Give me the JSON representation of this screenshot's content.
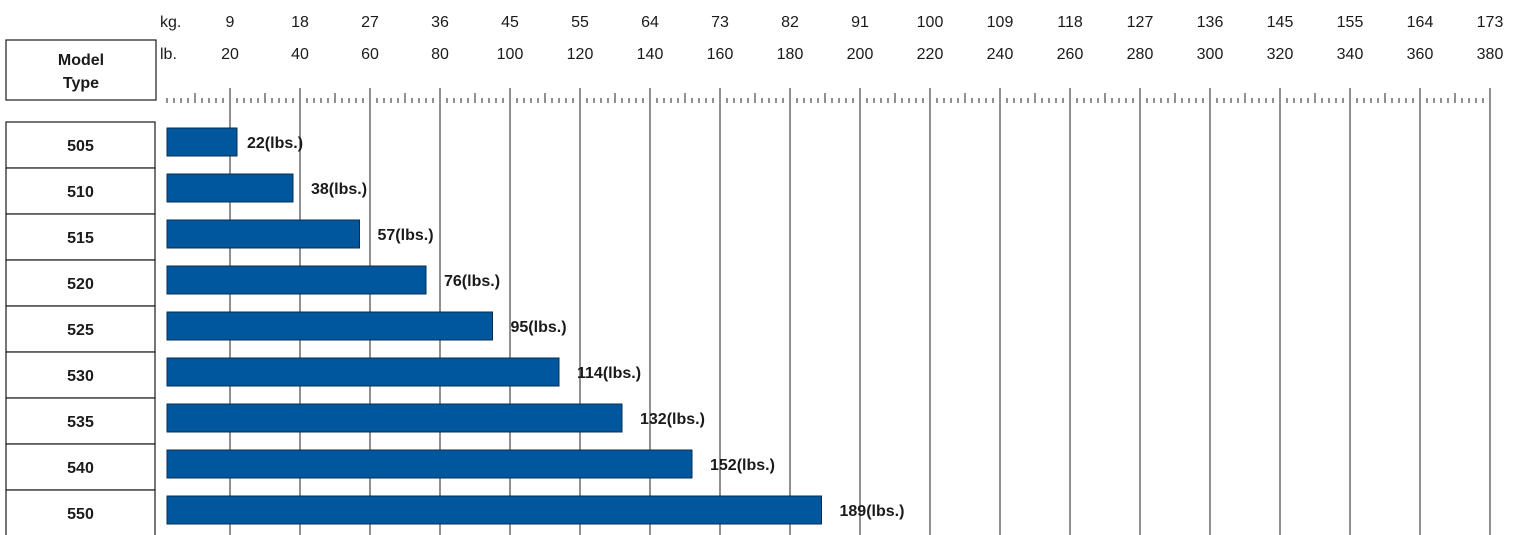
{
  "chart_data": {
    "type": "bar",
    "orientation": "horizontal",
    "header_label_line1": "Model",
    "header_label_line2": "Type",
    "kg_axis": {
      "label": "kg.",
      "ticks": [
        "9",
        "18",
        "27",
        "36",
        "45",
        "55",
        "64",
        "73",
        "82",
        "91",
        "100",
        "109",
        "118",
        "127",
        "136",
        "145",
        "155",
        "164",
        "173"
      ]
    },
    "lb_axis": {
      "label": "lb.",
      "ticks": [
        "20",
        "40",
        "60",
        "80",
        "100",
        "120",
        "140",
        "160",
        "180",
        "200",
        "220",
        "240",
        "260",
        "280",
        "300",
        "320",
        "340",
        "360",
        "380"
      ]
    },
    "xlim": [
      0,
      380
    ],
    "categories": [
      "505",
      "510",
      "515",
      "520",
      "525",
      "530",
      "535",
      "540",
      "550"
    ],
    "values": [
      22,
      38,
      57,
      76,
      95,
      114,
      132,
      152,
      189
    ],
    "value_labels": [
      "22(lbs.)",
      "38(lbs.)",
      "57(lbs.)",
      "76(lbs.)",
      "95(lbs.)",
      "114(lbs.)",
      "132(lbs.)",
      "152(lbs.)",
      "189(lbs.)"
    ],
    "bar_color": "#00579d",
    "grid": true
  }
}
